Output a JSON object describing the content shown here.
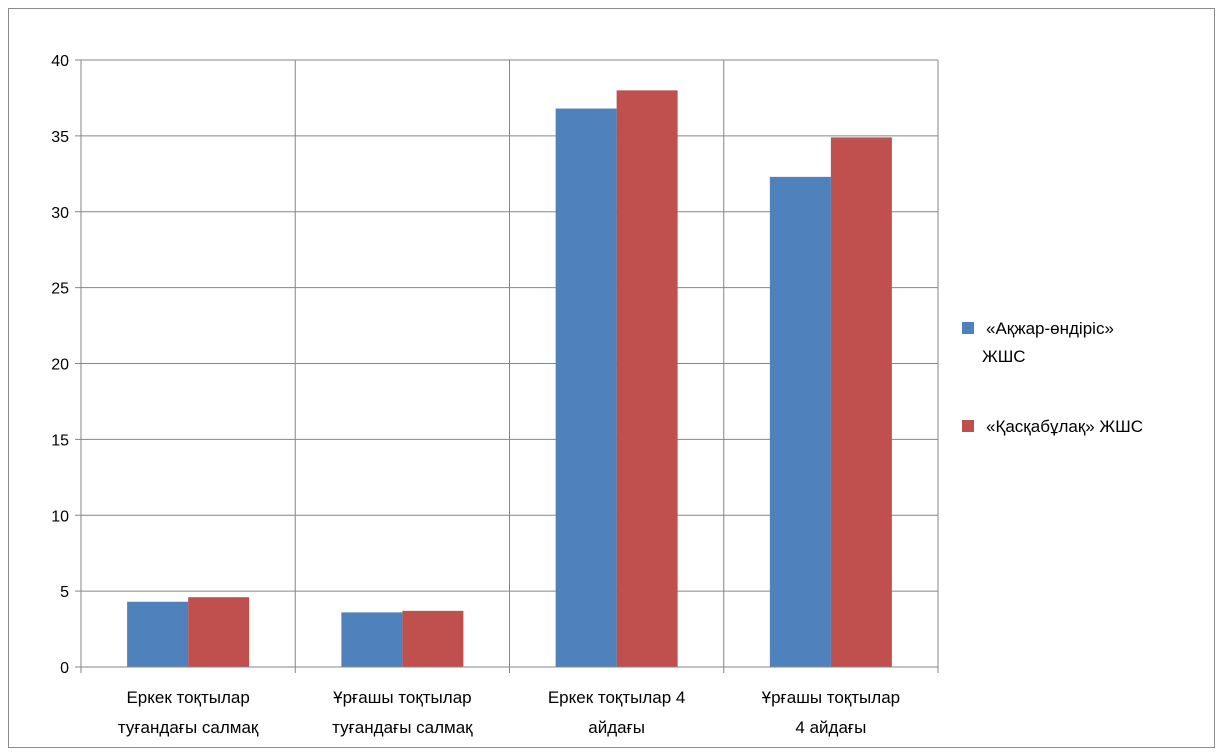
{
  "chart_data": {
    "type": "bar",
    "categories": [
      [
        "Еркек тоқтылар",
        "туғандағы салмақ"
      ],
      [
        "Ұрғашы тоқтылар",
        "туғандағы салмақ"
      ],
      [
        "Еркек тоқтылар 4",
        "айдағы"
      ],
      [
        "Ұрғашы тоқтылар",
        "4 айдағы"
      ]
    ],
    "series": [
      {
        "name": [
          "«Ақжар-өндіріс»",
          "ЖШС"
        ],
        "color": "#4F81BD",
        "values": [
          4.3,
          3.6,
          36.8,
          32.3
        ]
      },
      {
        "name": [
          "«Қасқабұлақ» ЖШС"
        ],
        "color": "#C0504D",
        "values": [
          4.6,
          3.7,
          38.0,
          34.9
        ]
      }
    ],
    "ylim": [
      0,
      40
    ],
    "yticks": [
      0,
      5,
      10,
      15,
      20,
      25,
      30,
      35,
      40
    ],
    "grid": true,
    "legend": "right"
  }
}
